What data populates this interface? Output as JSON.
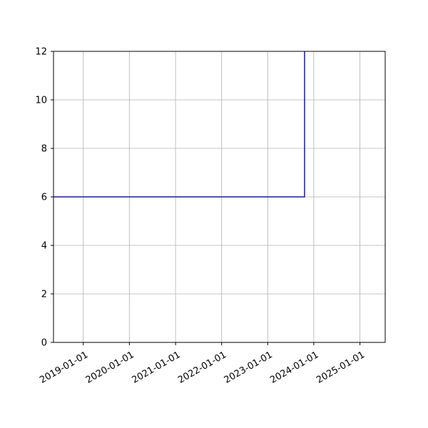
{
  "chart_data": {
    "type": "line",
    "title": "",
    "xlabel": "",
    "ylabel": "",
    "x_axis": {
      "kind": "date",
      "range": [
        "2018-05-10",
        "2025-07-20"
      ],
      "tick_labels": [
        "2019-01-01",
        "2020-01-01",
        "2021-01-01",
        "2022-01-01",
        "2023-01-01",
        "2024-01-01",
        "2025-01-01"
      ]
    },
    "y_axis": {
      "range": [
        0,
        12
      ],
      "tick_labels": [
        "0",
        "2",
        "4",
        "6",
        "8",
        "10",
        "12"
      ]
    },
    "grid": true,
    "legend": "none",
    "series": [
      {
        "color": "#1a1aa6",
        "step": true,
        "points": [
          {
            "x": "2018-05-10",
            "y": 6
          },
          {
            "x": "2023-10-20",
            "y": 6
          },
          {
            "x": "2023-10-20",
            "y": 12
          }
        ]
      }
    ]
  }
}
